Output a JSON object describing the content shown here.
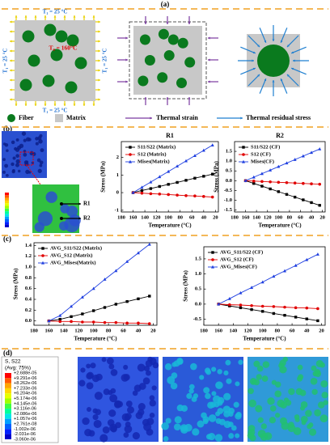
{
  "panel_labels": [
    "(a)",
    "(b)",
    "(c)",
    "(d)"
  ],
  "panel_a": {
    "boundary_labels": [
      "T₁ = 25 °C",
      "T₁ = 25 °C",
      "T₁ = 25 °C",
      "T₁ = 25 °C"
    ],
    "initial_label": "T₀ = 160°C",
    "legend": [
      "Fiber",
      "Matrix",
      "Thermal strain",
      "Thermal residual stress"
    ]
  },
  "panel_b": {
    "points": [
      "R1",
      "R2"
    ]
  },
  "panel_d": {
    "legend_title": "S, S22",
    "legend_subtitle": "(Avg: 75%)",
    "levels": [
      "+2.688e-05",
      "+9.291e-06",
      "+8.262e-06",
      "+7.233e-06",
      "+6.204e-06",
      "+5.174e-06",
      "+4.145e-06",
      "+3.116e-06",
      "+2.086e-06",
      "+1.057e-06",
      "+2.761e-08",
      "-1.002e-06",
      "-2.031e-06",
      "-3.060e-06"
    ],
    "colors": [
      "#ff0000",
      "#ff5a00",
      "#ffa500",
      "#ffd700",
      "#e6ff00",
      "#a0ff00",
      "#40ff40",
      "#00ff9a",
      "#00e6e6",
      "#00a0ff",
      "#0060ff",
      "#0020ff",
      "#0000c8"
    ]
  },
  "chart_data": [
    {
      "type": "line",
      "title": "R1",
      "xlabel": "Temperature (°C)",
      "ylabel": "Stress (MPa)",
      "x": [
        160,
        145,
        130,
        115,
        100,
        85,
        70,
        55,
        40,
        25
      ],
      "xlim": [
        180,
        15
      ],
      "xticks": [
        180,
        160,
        140,
        120,
        100,
        80,
        60,
        40,
        20
      ],
      "ylim": [
        -1.1,
        2.9
      ],
      "yticks": [
        -1,
        0,
        1,
        2
      ],
      "series": [
        {
          "name": "S11/S22 (Matrix)",
          "color": "#000000",
          "marker": "square",
          "values": [
            0,
            0.12,
            0.23,
            0.35,
            0.47,
            0.58,
            0.7,
            0.82,
            0.93,
            1.05
          ]
        },
        {
          "name": "S12 (Matrix)",
          "color": "#e00000",
          "marker": "circle",
          "values": [
            0,
            -0.03,
            -0.06,
            -0.08,
            -0.11,
            -0.14,
            -0.17,
            -0.19,
            -0.22,
            -0.25
          ]
        },
        {
          "name": "Mises(Matrix)",
          "color": "#1f3fe0",
          "marker": "triangle",
          "values": [
            0,
            0.3,
            0.6,
            0.9,
            1.2,
            1.5,
            1.8,
            2.1,
            2.4,
            2.7
          ]
        }
      ]
    },
    {
      "type": "line",
      "title": "R2",
      "xlabel": "Temperature (°C)",
      "ylabel": "Stress (MPa)",
      "x": [
        160,
        145,
        130,
        115,
        100,
        85,
        70,
        55,
        40,
        25
      ],
      "xlim": [
        180,
        15
      ],
      "xticks": [
        180,
        160,
        140,
        120,
        100,
        80,
        60,
        40,
        20
      ],
      "ylim": [
        -1.6,
        2.0
      ],
      "yticks": [
        -1.5,
        {
          "value": -1,
          "label": "-1.0"
        },
        -0.5,
        {
          "value": 0,
          "label": "0.0"
        },
        0.5,
        {
          "value": 1,
          "label": "1.0"
        },
        1.5
      ],
      "series": [
        {
          "name": "S11/S22 (CF)",
          "color": "#000000",
          "marker": "square",
          "values": [
            0,
            -0.14,
            -0.28,
            -0.42,
            -0.56,
            -0.7,
            -0.84,
            -0.98,
            -1.12,
            -1.26
          ]
        },
        {
          "name": "S12 (CF)",
          "color": "#e00000",
          "marker": "circle",
          "values": [
            0,
            -0.02,
            -0.04,
            -0.06,
            -0.08,
            -0.1,
            -0.12,
            -0.14,
            -0.16,
            -0.18
          ]
        },
        {
          "name": "Mises(CF)",
          "color": "#1f3fe0",
          "marker": "triangle",
          "values": [
            0,
            0.18,
            0.36,
            0.54,
            0.72,
            0.9,
            1.08,
            1.26,
            1.44,
            1.62
          ]
        }
      ]
    },
    {
      "type": "line",
      "xlabel": "Temperature (°C)",
      "ylabel": "Stress (MPa)",
      "x": [
        160,
        145,
        130,
        115,
        100,
        85,
        70,
        55,
        40,
        25
      ],
      "xlim": [
        180,
        15
      ],
      "xticks": [
        180,
        160,
        140,
        120,
        100,
        80,
        60,
        40,
        20
      ],
      "ylim": [
        -0.08,
        1.45
      ],
      "yticks": [
        {
          "value": 0,
          "label": "0.0"
        },
        0.2,
        0.4,
        0.6,
        0.8,
        {
          "value": 1,
          "label": "1.0"
        },
        1.2,
        1.4
      ],
      "series": [
        {
          "name": "AVG_S11/S22 (Matrix)",
          "color": "#000000",
          "marker": "square",
          "values": [
            0,
            0.03,
            0.08,
            0.13,
            0.19,
            0.25,
            0.31,
            0.36,
            0.41,
            0.46
          ]
        },
        {
          "name": "AVG_S12 (Matrix)",
          "color": "#e00000",
          "marker": "circle",
          "values": [
            0,
            -0.01,
            -0.01,
            -0.02,
            -0.02,
            -0.03,
            -0.03,
            -0.04,
            -0.04,
            -0.05
          ]
        },
        {
          "name": "AVG_Mises(Matrix)",
          "color": "#1f3fe0",
          "marker": "triangle",
          "values": [
            0,
            0.1,
            0.27,
            0.44,
            0.6,
            0.77,
            0.93,
            1.1,
            1.26,
            1.42
          ]
        }
      ]
    },
    {
      "type": "line",
      "xlabel": "Temperature (°C)",
      "ylabel": "Stress (MPa)",
      "x": [
        160,
        145,
        130,
        115,
        100,
        85,
        70,
        55,
        40,
        25
      ],
      "xlim": [
        180,
        15
      ],
      "xticks": [
        180,
        160,
        140,
        120,
        100,
        80,
        60,
        40,
        20
      ],
      "ylim": [
        -0.7,
        1.9
      ],
      "yticks": [
        -0.5,
        {
          "value": 0,
          "label": "0.0"
        },
        0.5,
        {
          "value": 1,
          "label": "1.0"
        },
        1.5
      ],
      "series": [
        {
          "name": "AVG_S11/S22 (CF)",
          "color": "#000000",
          "marker": "square",
          "values": [
            0,
            -0.06,
            -0.12,
            -0.18,
            -0.24,
            -0.31,
            -0.37,
            -0.43,
            -0.49,
            -0.55
          ]
        },
        {
          "name": "AVG_S12 (CF)",
          "color": "#e00000",
          "marker": "circle",
          "values": [
            0,
            -0.02,
            -0.03,
            -0.05,
            -0.07,
            -0.08,
            -0.1,
            -0.12,
            -0.13,
            -0.15
          ]
        },
        {
          "name": "AVG_Mises(CF)",
          "color": "#1f3fe0",
          "marker": "triangle",
          "values": [
            0,
            0.18,
            0.37,
            0.55,
            0.73,
            0.92,
            1.1,
            1.28,
            1.47,
            1.65
          ]
        }
      ]
    }
  ]
}
